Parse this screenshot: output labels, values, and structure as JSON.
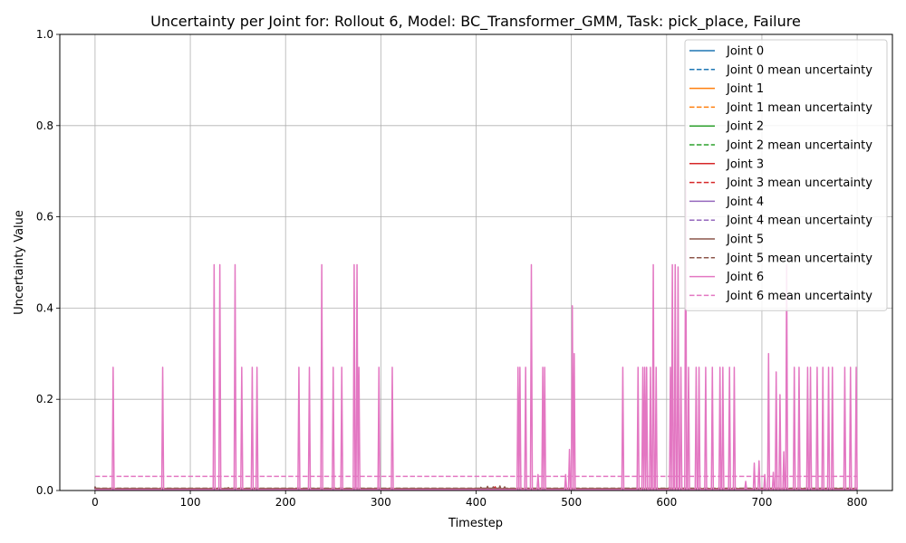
{
  "chart_data": {
    "type": "line",
    "title": "Uncertainty per Joint for: Rollout 6, Model: BC_Transformer_GMM, Task: pick_place, Failure",
    "xlabel": "Timestep",
    "ylabel": "Uncertainty Value",
    "xlim": [
      -37,
      837
    ],
    "ylim": [
      0,
      1.0
    ],
    "xticks": [
      0,
      100,
      200,
      300,
      400,
      500,
      600,
      700,
      800
    ],
    "yticks": [
      0.0,
      0.2,
      0.4,
      0.6,
      0.8,
      1.0
    ],
    "xtick_labels": [
      "0",
      "100",
      "200",
      "300",
      "400",
      "500",
      "600",
      "700",
      "800"
    ],
    "ytick_labels": [
      "0.0",
      "0.2",
      "0.4",
      "0.6",
      "0.8",
      "1.0"
    ],
    "grid": true,
    "legend_position": "top-right",
    "series": [
      {
        "name": "Joint 0",
        "color": "#1f77b4",
        "style": "solid",
        "baseline": 0.003,
        "spikes": [
          [
            0,
            0.008
          ]
        ]
      },
      {
        "name": "Joint 0 mean uncertainty",
        "color": "#1f77b4",
        "style": "dashed",
        "mean": 0.003
      },
      {
        "name": "Joint 1",
        "color": "#ff7f0e",
        "style": "solid",
        "baseline": 0.003,
        "spikes": [
          [
            0,
            0.006
          ]
        ]
      },
      {
        "name": "Joint 1 mean uncertainty",
        "color": "#ff7f0e",
        "style": "dashed",
        "mean": 0.003
      },
      {
        "name": "Joint 2",
        "color": "#2ca02c",
        "style": "solid",
        "baseline": 0.003,
        "spikes": [
          [
            0,
            0.006
          ]
        ]
      },
      {
        "name": "Joint 2 mean uncertainty",
        "color": "#2ca02c",
        "style": "dashed",
        "mean": 0.003
      },
      {
        "name": "Joint 3",
        "color": "#d62728",
        "style": "solid",
        "baseline": 0.004,
        "spikes": [
          [
            0,
            0.006
          ],
          [
            140,
            0.006
          ],
          [
            420,
            0.008
          ]
        ]
      },
      {
        "name": "Joint 3 mean uncertainty",
        "color": "#d62728",
        "style": "dashed",
        "mean": 0.004
      },
      {
        "name": "Joint 4",
        "color": "#9467bd",
        "style": "solid",
        "baseline": 0.003,
        "spikes": [
          [
            0,
            0.006
          ]
        ]
      },
      {
        "name": "Joint 4 mean uncertainty",
        "color": "#9467bd",
        "style": "dashed",
        "mean": 0.003
      },
      {
        "name": "Joint 5",
        "color": "#8c564b",
        "style": "solid",
        "baseline": 0.004,
        "spikes": [
          [
            0,
            0.008
          ],
          [
            140,
            0.006
          ],
          [
            405,
            0.007
          ],
          [
            412,
            0.009
          ],
          [
            418,
            0.008
          ],
          [
            425,
            0.01
          ],
          [
            430,
            0.008
          ],
          [
            603,
            0.006
          ]
        ]
      },
      {
        "name": "Joint 5 mean uncertainty",
        "color": "#8c564b",
        "style": "dashed",
        "mean": 0.005
      },
      {
        "name": "Joint 6",
        "color": "#e377c2",
        "style": "solid",
        "baseline": 0.002,
        "spikes": [
          [
            19,
            0.27
          ],
          [
            71,
            0.27
          ],
          [
            125,
            0.495
          ],
          [
            131,
            0.495
          ],
          [
            147,
            0.495
          ],
          [
            154,
            0.27
          ],
          [
            165,
            0.27
          ],
          [
            170,
            0.27
          ],
          [
            214,
            0.27
          ],
          [
            225,
            0.27
          ],
          [
            238,
            0.495
          ],
          [
            250,
            0.27
          ],
          [
            259,
            0.27
          ],
          [
            272,
            0.495
          ],
          [
            275,
            0.495
          ],
          [
            277,
            0.27
          ],
          [
            298,
            0.27
          ],
          [
            312,
            0.27
          ],
          [
            444,
            0.27
          ],
          [
            446,
            0.27
          ],
          [
            452,
            0.27
          ],
          [
            458,
            0.495
          ],
          [
            465,
            0.035
          ],
          [
            470,
            0.27
          ],
          [
            472,
            0.27
          ],
          [
            494,
            0.035
          ],
          [
            498,
            0.09
          ],
          [
            501,
            0.405
          ],
          [
            503,
            0.3
          ],
          [
            554,
            0.27
          ],
          [
            570,
            0.27
          ],
          [
            575,
            0.27
          ],
          [
            577,
            0.27
          ],
          [
            579,
            0.27
          ],
          [
            583,
            0.27
          ],
          [
            586,
            0.495
          ],
          [
            589,
            0.27
          ],
          [
            604,
            0.27
          ],
          [
            606,
            0.495
          ],
          [
            609,
            0.495
          ],
          [
            612,
            0.49
          ],
          [
            615,
            0.27
          ],
          [
            620,
            0.68
          ],
          [
            623,
            0.27
          ],
          [
            631,
            0.27
          ],
          [
            634,
            0.27
          ],
          [
            641,
            0.27
          ],
          [
            648,
            0.27
          ],
          [
            656,
            0.27
          ],
          [
            659,
            0.27
          ],
          [
            666,
            0.27
          ],
          [
            671,
            0.27
          ],
          [
            683,
            0.02
          ],
          [
            692,
            0.06
          ],
          [
            697,
            0.065
          ],
          [
            703,
            0.035
          ],
          [
            707,
            0.3
          ],
          [
            712,
            0.04
          ],
          [
            715,
            0.26
          ],
          [
            719,
            0.21
          ],
          [
            723,
            0.085
          ],
          [
            726,
            0.495
          ],
          [
            734,
            0.27
          ],
          [
            739,
            0.27
          ],
          [
            748,
            0.27
          ],
          [
            751,
            0.27
          ],
          [
            758,
            0.27
          ],
          [
            764,
            0.27
          ],
          [
            770,
            0.27
          ],
          [
            774,
            0.27
          ],
          [
            787,
            0.27
          ],
          [
            793,
            0.27
          ],
          [
            799,
            0.27
          ]
        ]
      },
      {
        "name": "Joint 6 mean uncertainty",
        "color": "#e377c2",
        "style": "dashed",
        "mean": 0.031
      }
    ],
    "x_end": 800
  }
}
